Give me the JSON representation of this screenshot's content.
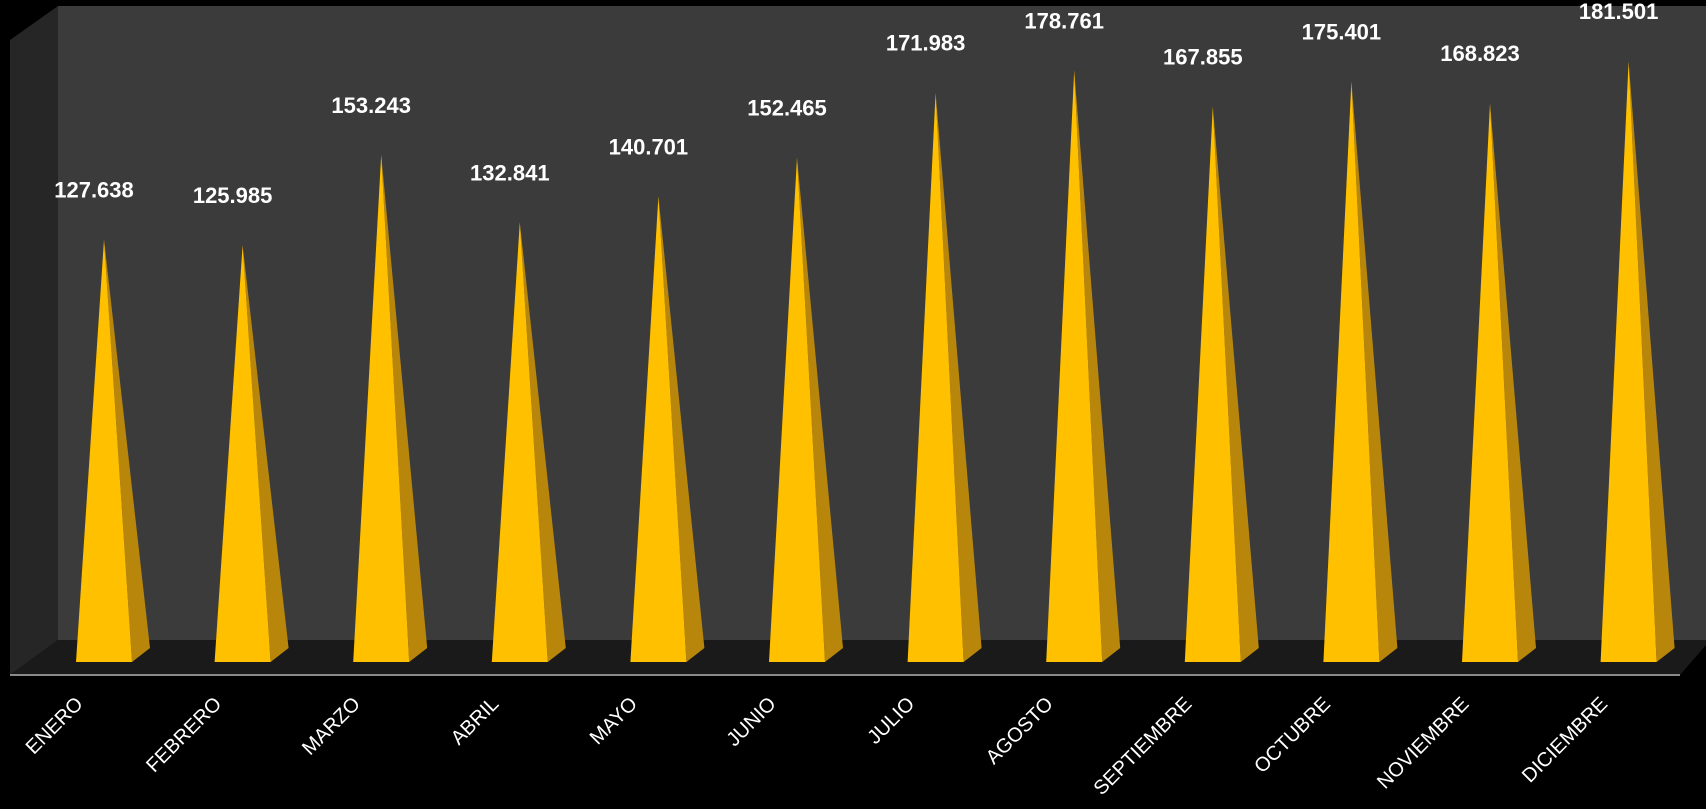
{
  "chart_data": {
    "type": "bar",
    "style": "3d-cone",
    "categories": [
      "ENERO",
      "FEBRERO",
      "MARZO",
      "ABRIL",
      "MAYO",
      "JUNIO",
      "JULIO",
      "AGOSTO",
      "SEPTIEMBRE",
      "OCTUBRE",
      "NOVIEMBRE",
      "DICIEMBRE"
    ],
    "values": [
      127638,
      125985,
      153243,
      132841,
      140701,
      152465,
      171983,
      178761,
      167855,
      175401,
      168823,
      181501
    ],
    "value_labels": [
      "127.638",
      "125.985",
      "153.243",
      "132.841",
      "140.701",
      "152.465",
      "171.983",
      "178.761",
      "167.855",
      "175.401",
      "168.823",
      "181.501"
    ],
    "title": "",
    "xlabel": "",
    "ylabel": "",
    "ylim": [
      0,
      200000
    ],
    "grid": false,
    "legend": "none",
    "colors": {
      "background": "#000000",
      "back_wall": "#3b3b3b",
      "side_wall": "#262626",
      "floor": "#1a1a1a",
      "cone_front": "#ffc000",
      "cone_side": "#b8860b",
      "label": "#ffffff"
    }
  }
}
